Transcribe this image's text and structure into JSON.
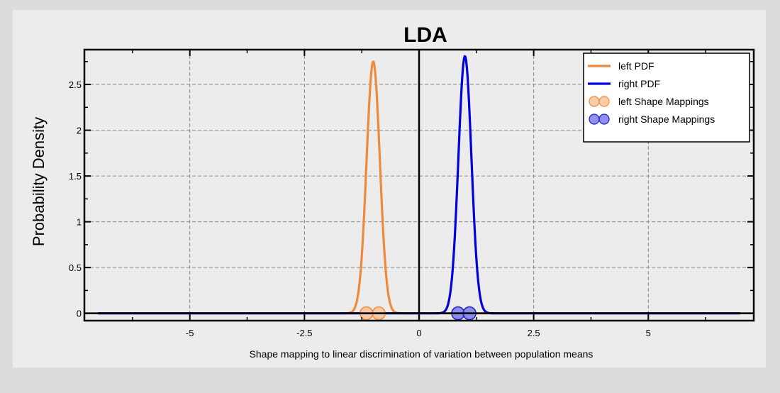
{
  "chart_data": {
    "type": "line",
    "title": "LDA",
    "xlabel": "Shape mapping to linear discrimination of variation between population means",
    "ylabel": "Probability Density",
    "xlim": [
      -7.3,
      7.3
    ],
    "ylim": [
      -0.08,
      2.88
    ],
    "xticks": [
      -5,
      -2.5,
      0,
      2.5,
      5
    ],
    "xtick_labels": [
      "-5",
      "-2.5",
      "0",
      "2.5",
      "5"
    ],
    "yticks": [
      0,
      0.5,
      1,
      1.5,
      2,
      2.5
    ],
    "ytick_labels": [
      "0",
      "0.5",
      "1",
      "1.5",
      "2",
      "2.5"
    ],
    "grid": true,
    "legend_position": "top-right",
    "series": [
      {
        "name": "left PDF",
        "kind": "line",
        "color": "#ef8a3c",
        "mean": -1.0,
        "sd": 0.145,
        "x_range": [
          -7,
          7
        ]
      },
      {
        "name": "right PDF",
        "kind": "line",
        "color": "#0000e0",
        "mean": 1.0,
        "sd": 0.142,
        "x_range": [
          -7,
          7
        ]
      },
      {
        "name": "left Shape Mappings",
        "kind": "scatter",
        "color": "#f9c39a",
        "edge": "#ef8a3c",
        "x": [
          -1.15,
          -0.88
        ],
        "y": [
          0,
          0
        ]
      },
      {
        "name": "right Shape Mappings",
        "kind": "scatter",
        "color": "#7b7bf2",
        "edge": "#2020b0",
        "x": [
          0.85,
          1.1
        ],
        "y": [
          0,
          0
        ]
      }
    ]
  }
}
